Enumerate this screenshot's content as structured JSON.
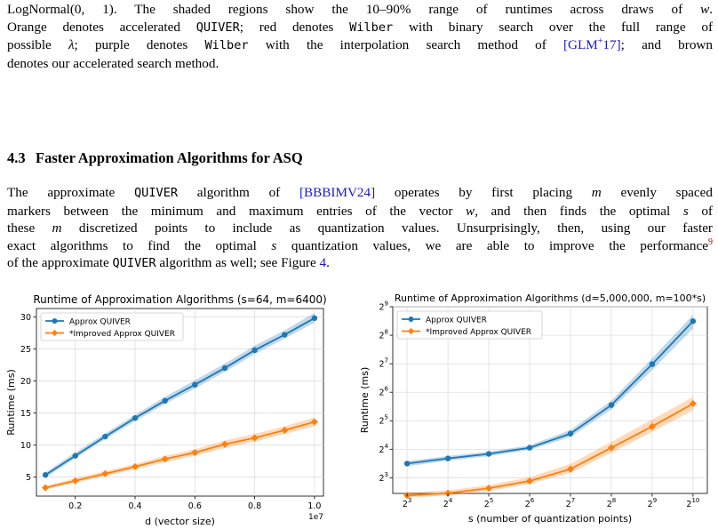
{
  "top_paragraph": {
    "lines": [
      [
        "LogNormal(0, 1).  The shaded regions show the 10–90% range of runtimes across draws of ",
        {
          "i": "w"
        },
        "."
      ],
      [
        "Orange denotes accelerated ",
        {
          "m": "QUIVER"
        },
        "; red denotes ",
        {
          "m": "Wilber"
        },
        " with binary search over the full range of"
      ],
      [
        "possible ",
        {
          "i": "λ"
        },
        "; purple denotes ",
        {
          "m": "Wilber"
        },
        " with the interpolation search method of ",
        {
          "c": "[GLM"
        },
        {
          "cs": "+"
        },
        {
          "c": "17]"
        },
        "; and brown"
      ],
      [
        "denotes our accelerated search method."
      ]
    ]
  },
  "section": {
    "number": "4.3",
    "title": "Faster Approximation Algorithms for ASQ"
  },
  "body_paragraph": {
    "lines": [
      [
        "The approximate ",
        {
          "m": "QUIVER"
        },
        " algorithm of ",
        {
          "c": "[BBBIMV24]"
        },
        " operates by first placing ",
        {
          "i": "m"
        },
        " evenly spaced"
      ],
      [
        "markers between the minimum and maximum entries of the vector ",
        {
          "i": "w"
        },
        ", and then finds the optimal ",
        {
          "i": "s"
        },
        " of"
      ],
      [
        "these ",
        {
          "i": "m"
        },
        " discretized points to include as quantization values. Unsurprisingly, then, using our faster"
      ],
      [
        "exact algorithms to find the optimal ",
        {
          "i": "s"
        },
        " quantization values, we are able to improve the performance",
        {
          "f": "9"
        }
      ],
      [
        "of the approximate ",
        {
          "m": "QUIVER"
        },
        " algorithm as well; see Figure ",
        {
          "c": "4"
        },
        "."
      ]
    ]
  },
  "colors": {
    "blue": "#1f77b4",
    "orange": "#ff7f0e",
    "cite": "#1a1acc",
    "footnote": "#c00000"
  },
  "chart_data": [
    {
      "type": "line",
      "title": "Runtime of Approximation Algorithms (s=64, m=6400)",
      "xlabel": "d (vector size)",
      "ylabel": "Runtime (ms)",
      "x_offset_label": "1e7",
      "x": [
        0.1,
        0.2,
        0.3,
        0.4,
        0.5,
        0.6,
        0.7,
        0.8,
        0.9,
        1.0
      ],
      "xlim": [
        0.07,
        1.03
      ],
      "ylim": [
        2,
        31.3
      ],
      "xticks": [
        0.2,
        0.4,
        0.6,
        0.8,
        1.0
      ],
      "xtick_labels": [
        "0.2",
        "0.4",
        "0.6",
        "0.8",
        "1.0"
      ],
      "yticks": [
        5,
        10,
        15,
        20,
        25,
        30
      ],
      "ytick_labels": [
        "5",
        "10",
        "15",
        "20",
        "25",
        "30"
      ],
      "grid": true,
      "legend_position": "upper-left",
      "series": [
        {
          "name": "Approx QUIVER",
          "color": "#1f77b4",
          "values": [
            5.3,
            8.3,
            11.3,
            14.2,
            16.9,
            19.4,
            22.0,
            24.8,
            27.2,
            29.8
          ],
          "low": [
            4.9,
            7.9,
            10.9,
            13.7,
            16.4,
            18.8,
            21.4,
            24.2,
            26.6,
            29.1
          ],
          "high": [
            5.7,
            8.8,
            11.8,
            14.7,
            17.5,
            20.1,
            22.7,
            25.5,
            27.9,
            30.6
          ]
        },
        {
          "name": "*Improved Approx QUIVER",
          "color": "#ff7f0e",
          "values": [
            3.3,
            4.4,
            5.5,
            6.6,
            7.8,
            8.8,
            10.1,
            11.1,
            12.3,
            13.6
          ],
          "low": [
            3.0,
            4.1,
            5.1,
            6.2,
            7.3,
            8.3,
            9.5,
            10.5,
            11.7,
            12.9
          ],
          "high": [
            3.6,
            4.8,
            5.9,
            7.0,
            8.3,
            9.3,
            10.7,
            11.7,
            12.9,
            14.3
          ]
        }
      ]
    },
    {
      "type": "line",
      "title": "Runtime of Approximation Algorithms (d=5,000,000, m=100*s)",
      "xlabel": "s (number of quantization points)",
      "ylabel": "Runtime (ms)",
      "x_scale": "log2",
      "y_scale": "log2",
      "x": [
        8,
        16,
        32,
        64,
        128,
        256,
        512,
        1024
      ],
      "x_exponents": [
        3,
        4,
        5,
        6,
        7,
        8,
        9,
        10
      ],
      "xlim_exp": [
        2.65,
        10.35
      ],
      "ylim_exp": [
        2.45,
        9.0
      ],
      "xtick_exponents": [
        3,
        4,
        5,
        6,
        7,
        8,
        9,
        10
      ],
      "ytick_exponents": [
        3,
        4,
        5,
        6,
        7,
        8,
        9
      ],
      "tick_base": "2",
      "grid": true,
      "legend_position": "upper-left",
      "series": [
        {
          "name": "Approx QUIVER",
          "color": "#1f77b4",
          "values": [
            11.3,
            12.8,
            14.3,
            16.6,
            23.4,
            46.9,
            126.7,
            360.0
          ],
          "low": [
            10.6,
            12.1,
            13.5,
            15.7,
            21.6,
            42.2,
            110.0,
            300.0
          ],
          "high": [
            12.0,
            13.6,
            15.1,
            17.6,
            25.6,
            52.0,
            146.0,
            420.0
          ]
        },
        {
          "name": "*Improved Approx QUIVER",
          "color": "#ff7f0e",
          "values": [
            5.2,
            5.5,
            6.2,
            7.4,
            9.9,
            16.6,
            27.9,
            48.5
          ],
          "low": [
            4.9,
            5.2,
            5.8,
            6.9,
            9.0,
            14.6,
            24.4,
            41.0
          ],
          "high": [
            5.6,
            5.9,
            6.7,
            8.1,
            11.2,
            19.2,
            33.0,
            57.0
          ]
        }
      ]
    }
  ]
}
